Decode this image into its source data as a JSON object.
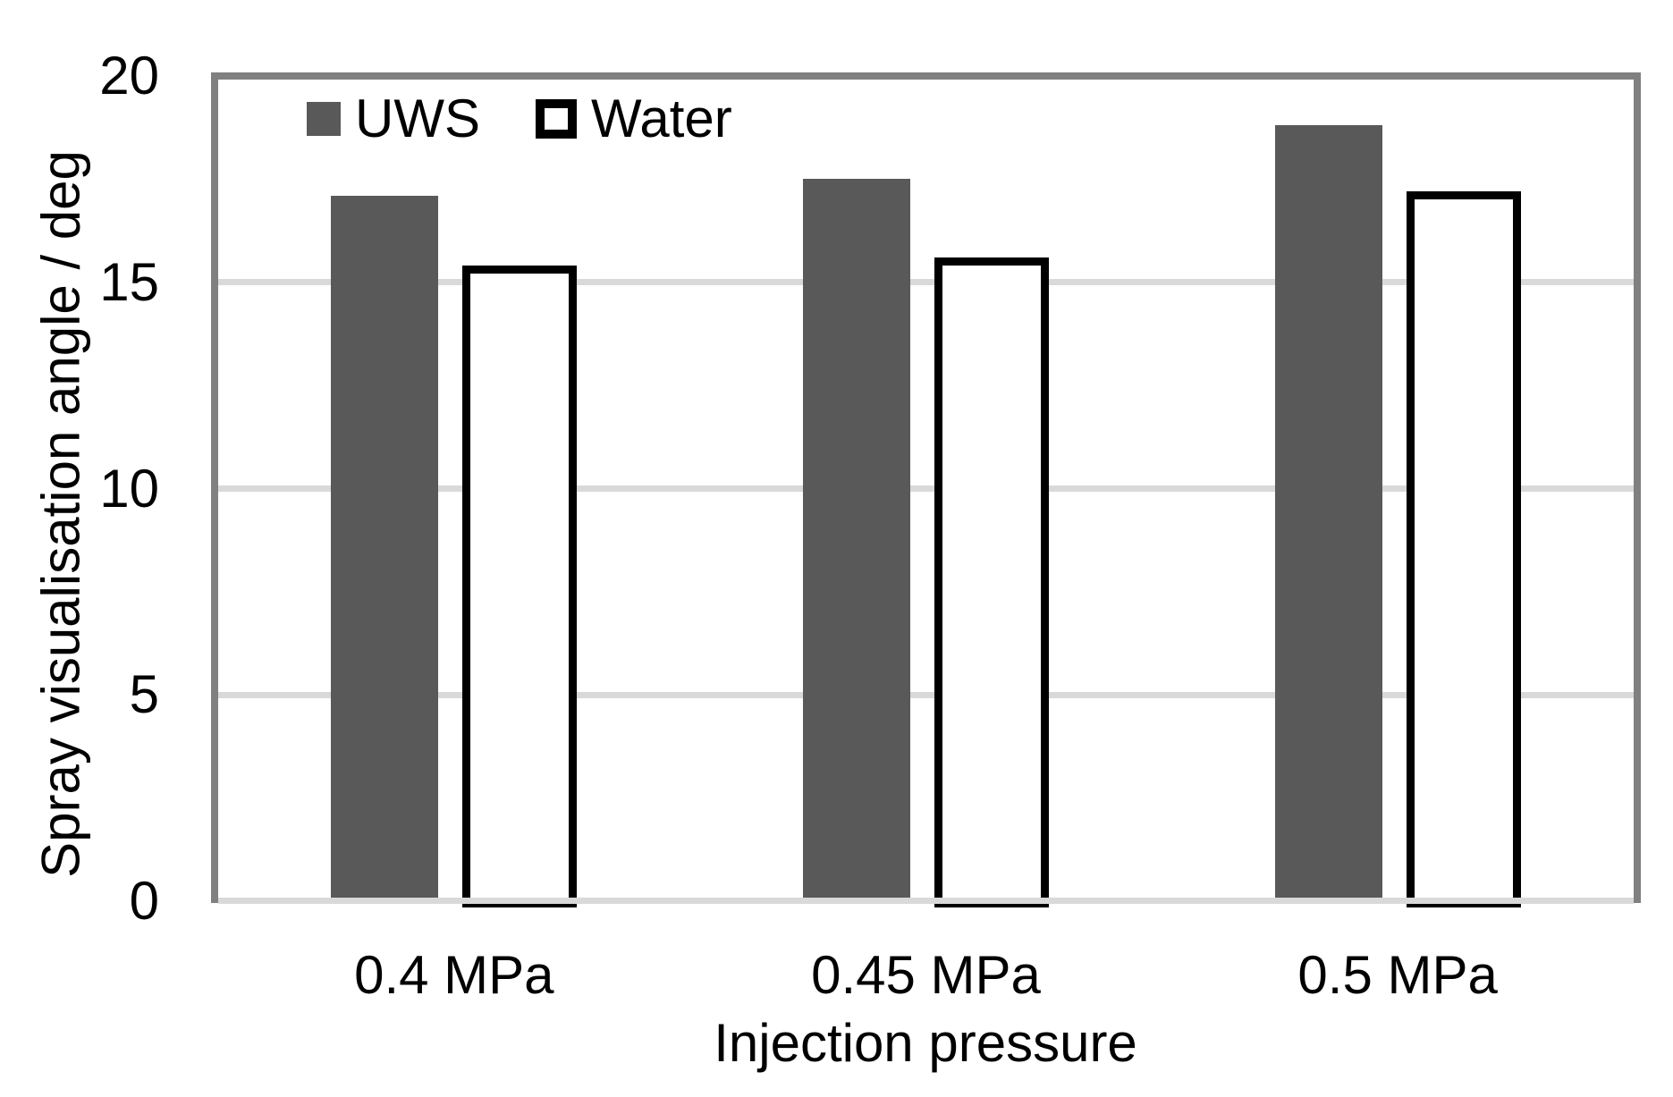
{
  "chart_data": {
    "type": "bar",
    "title": "",
    "categories": [
      "0.4 MPa",
      "0.45 MPa",
      "0.5 MPa"
    ],
    "series": [
      {
        "name": "UWS",
        "values": [
          17.1,
          17.5,
          18.8
        ],
        "fill": "#595959",
        "border": null
      },
      {
        "name": "Water",
        "values": [
          15.4,
          15.6,
          17.2
        ],
        "fill": "#ffffff",
        "border": "#000000"
      }
    ],
    "xlabel": "Injection pressure",
    "ylabel": "Spray visualisation angle / deg",
    "ylim": [
      0,
      20
    ],
    "yticks": [
      0,
      5,
      10,
      15,
      20
    ],
    "gridline_values": [
      5,
      10,
      15
    ],
    "grid_on": true,
    "legend_position": "top-left-inside",
    "colors": {
      "uws_fill": "#595959",
      "water_fill": "#ffffff",
      "water_border": "#000000",
      "plot_frame": "#808080",
      "gridline": "#d9d9d9",
      "text": "#000000"
    }
  }
}
